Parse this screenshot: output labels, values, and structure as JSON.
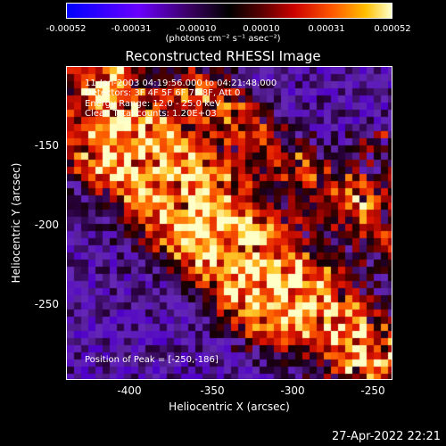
{
  "colorbar": {
    "ticks": [
      "-0.00052",
      "-0.00031",
      "-0.00010",
      "0.00010",
      "0.00031",
      "0.00052"
    ],
    "unit": "(photons cm⁻² s⁻¹ asec⁻²)"
  },
  "title": "Reconstructed RHESSI Image",
  "info": {
    "time": "11-Jan-2003 04:19:56.000 to 04:21:48.000",
    "detectors": "Detectors: 3F 4F 5F 6F 7F 8F, Att 0",
    "energy": "Energy Range: 12.0 - 25.0 keV",
    "clean": "Clean     Total counts: 1.20E+03",
    "peak": "Position of Peak = [-250,-186]"
  },
  "axes": {
    "xlabel": "Heliocentric X (arcsec)",
    "ylabel": "Heliocentric Y (arcsec)",
    "xticks": [
      "-400",
      "-350",
      "-300",
      "-250"
    ],
    "yticks": [
      "-150",
      "-200",
      "-250"
    ]
  },
  "timestamp": "27-Apr-2022 22:21"
}
